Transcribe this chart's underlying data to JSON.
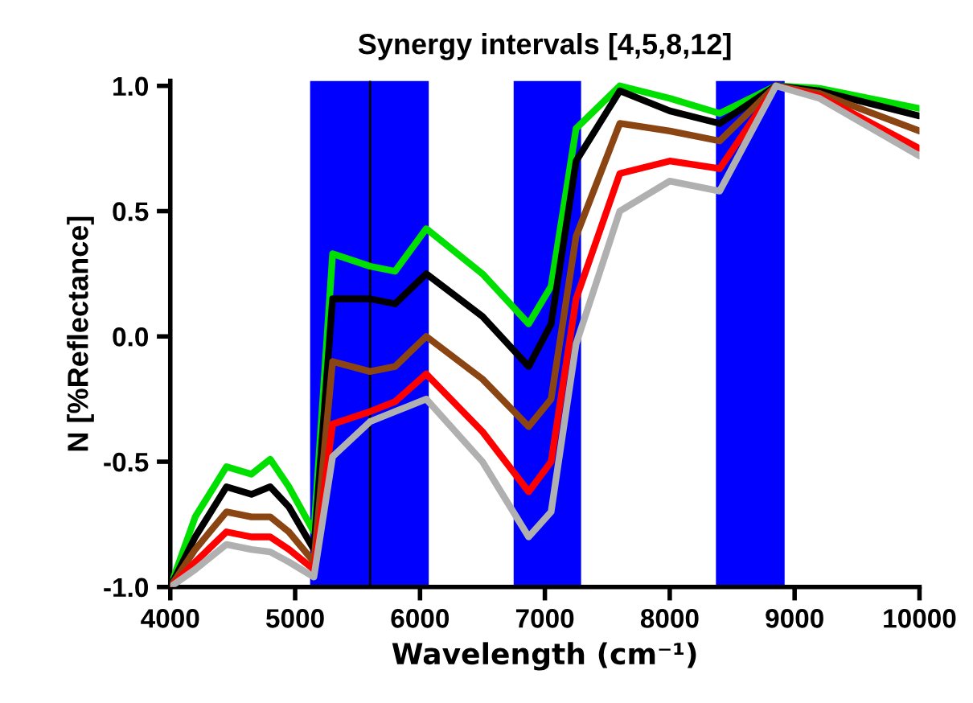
{
  "chart_data": {
    "type": "line",
    "title": "Synergy intervals [4,5,8,12]",
    "xlabel": "Wavelength (cm⁻¹)",
    "ylabel": "N [%Reflectance]",
    "x": [
      4000,
      4200,
      4450,
      4650,
      4800,
      4950,
      5150,
      5300,
      5600,
      5800,
      6050,
      6500,
      6870,
      7050,
      7250,
      7600,
      8000,
      8400,
      8850,
      9200,
      10000
    ],
    "series": [
      {
        "color": "#00e000",
        "values": [
          -1,
          -0.72,
          -0.52,
          -0.55,
          -0.49,
          -0.6,
          -0.78,
          0.33,
          0.28,
          0.26,
          0.43,
          0.25,
          0.05,
          0.2,
          0.83,
          1.0,
          0.95,
          0.89,
          1.0,
          0.99,
          0.91
        ]
      },
      {
        "color": "#000000",
        "values": [
          -1,
          -0.8,
          -0.6,
          -0.63,
          -0.6,
          -0.68,
          -0.85,
          0.15,
          0.15,
          0.13,
          0.25,
          0.08,
          -0.12,
          0.05,
          0.7,
          0.98,
          0.9,
          0.85,
          1.0,
          0.98,
          0.88
        ]
      },
      {
        "color": "#8b4513",
        "values": [
          -1,
          -0.85,
          -0.7,
          -0.72,
          -0.72,
          -0.78,
          -0.9,
          -0.1,
          -0.14,
          -0.12,
          0.0,
          -0.17,
          -0.36,
          -0.25,
          0.4,
          0.85,
          0.82,
          0.78,
          1.0,
          0.97,
          0.82
        ]
      },
      {
        "color": "#ff0000",
        "values": [
          -1,
          -0.9,
          -0.78,
          -0.8,
          -0.8,
          -0.85,
          -0.93,
          -0.35,
          -0.3,
          -0.26,
          -0.15,
          -0.38,
          -0.62,
          -0.5,
          0.15,
          0.65,
          0.7,
          0.67,
          1.0,
          0.96,
          0.75
        ]
      },
      {
        "color": "#b0b0b0",
        "values": [
          -1,
          -0.93,
          -0.83,
          -0.85,
          -0.86,
          -0.9,
          -0.96,
          -0.48,
          -0.34,
          -0.3,
          -0.25,
          -0.5,
          -0.8,
          -0.7,
          -0.03,
          0.5,
          0.62,
          0.58,
          1.0,
          0.95,
          0.72
        ]
      }
    ],
    "bands": [
      {
        "axis": "x",
        "from": 5120,
        "to": 5600,
        "color": "#0000ff"
      },
      {
        "axis": "x",
        "from": 5600,
        "to": 6070,
        "color": "#0000ff"
      },
      {
        "axis": "x",
        "from": 6750,
        "to": 7290,
        "color": "#0000ff"
      },
      {
        "axis": "x",
        "from": 8370,
        "to": 8920,
        "color": "#0000ff"
      }
    ],
    "ref_lines": [
      {
        "axis": "x",
        "value": 5600,
        "color": "#000000",
        "line_style": "solid"
      }
    ],
    "xlim": [
      4000,
      10000
    ],
    "ylim": [
      -1.0,
      1.02
    ],
    "xticks": [
      4000,
      5000,
      6000,
      7000,
      8000,
      9000,
      10000
    ],
    "yticks": [
      {
        "value": -1.0,
        "label": "-1.0"
      },
      {
        "value": -0.5,
        "label": "-0.5"
      },
      {
        "value": 0.0,
        "label": "0.0"
      },
      {
        "value": 0.5,
        "label": "0.5"
      },
      {
        "value": 1.0,
        "label": "1.0"
      }
    ],
    "grid": false,
    "legend": false,
    "marker": "none",
    "line_style": "solid"
  }
}
